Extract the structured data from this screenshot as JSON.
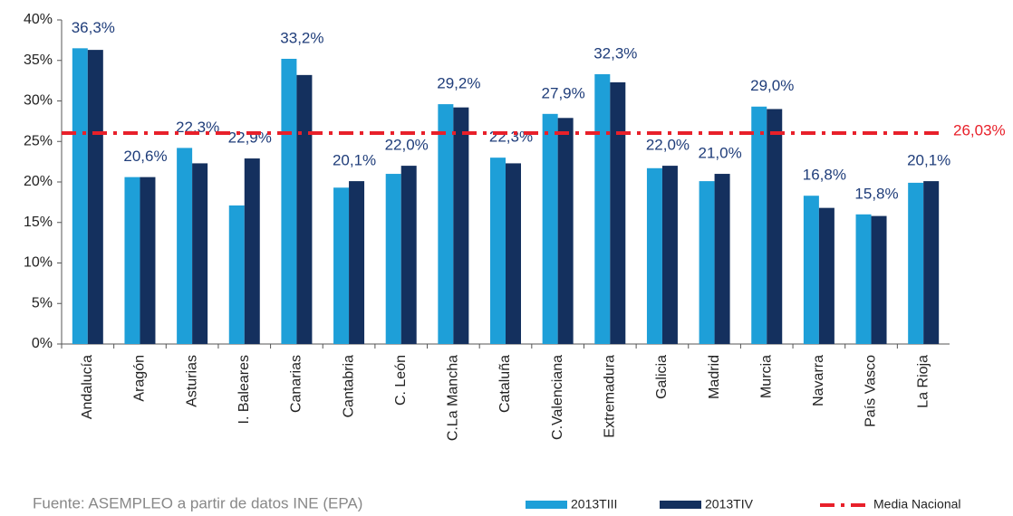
{
  "chart_data": {
    "type": "bar",
    "categories": [
      "Andalucía",
      "Aragón",
      "Asturias",
      "I. Baleares",
      "Canarias",
      "Cantabria",
      "C. León",
      "C.La Mancha",
      "Cataluña",
      "C.Valenciana",
      "Extremadura",
      "Galicia",
      "Madrid",
      "Murcia",
      "Navarra",
      "País Vasco",
      "La Rioja"
    ],
    "series": [
      {
        "name": "2013TIII",
        "color": "#1e9fd8",
        "values": [
          36.5,
          20.6,
          24.2,
          17.1,
          35.2,
          19.3,
          21.0,
          29.6,
          23.0,
          28.4,
          33.3,
          21.7,
          20.1,
          29.3,
          18.3,
          16.0,
          19.9
        ]
      },
      {
        "name": "2013TIV",
        "color": "#14305e",
        "values": [
          36.3,
          20.6,
          22.3,
          22.9,
          33.2,
          20.1,
          22.0,
          29.2,
          22.3,
          27.9,
          32.3,
          22.0,
          21.0,
          29.0,
          16.8,
          15.8,
          20.1
        ],
        "value_labels": [
          "36,3%",
          "20,6%",
          "22,3%",
          "22,9%",
          "33,2%",
          "20,1%",
          "22,0%",
          "29,2%",
          "22,3%",
          "27,9%",
          "32,3%",
          "22,0%",
          "21,0%",
          "29,0%",
          "16,8%",
          "15,8%",
          "20,1%"
        ]
      }
    ],
    "reference_line": {
      "name": "Media Nacional",
      "color": "#e8202a",
      "value": 26.03,
      "label": "26,03%"
    },
    "ylim": [
      0,
      40
    ],
    "yticks": [
      {
        "value": 0,
        "label": "0%"
      },
      {
        "value": 5,
        "label": "5%"
      },
      {
        "value": 10,
        "label": "10%"
      },
      {
        "value": 15,
        "label": "15%"
      },
      {
        "value": 20,
        "label": "20%"
      },
      {
        "value": 25,
        "label": "25%"
      },
      {
        "value": 30,
        "label": "30%"
      },
      {
        "value": 35,
        "label": "35%"
      },
      {
        "value": 40,
        "label": "40%"
      }
    ],
    "source": "Fuente: ASEMPLEO a partir de datos INE (EPA)"
  }
}
